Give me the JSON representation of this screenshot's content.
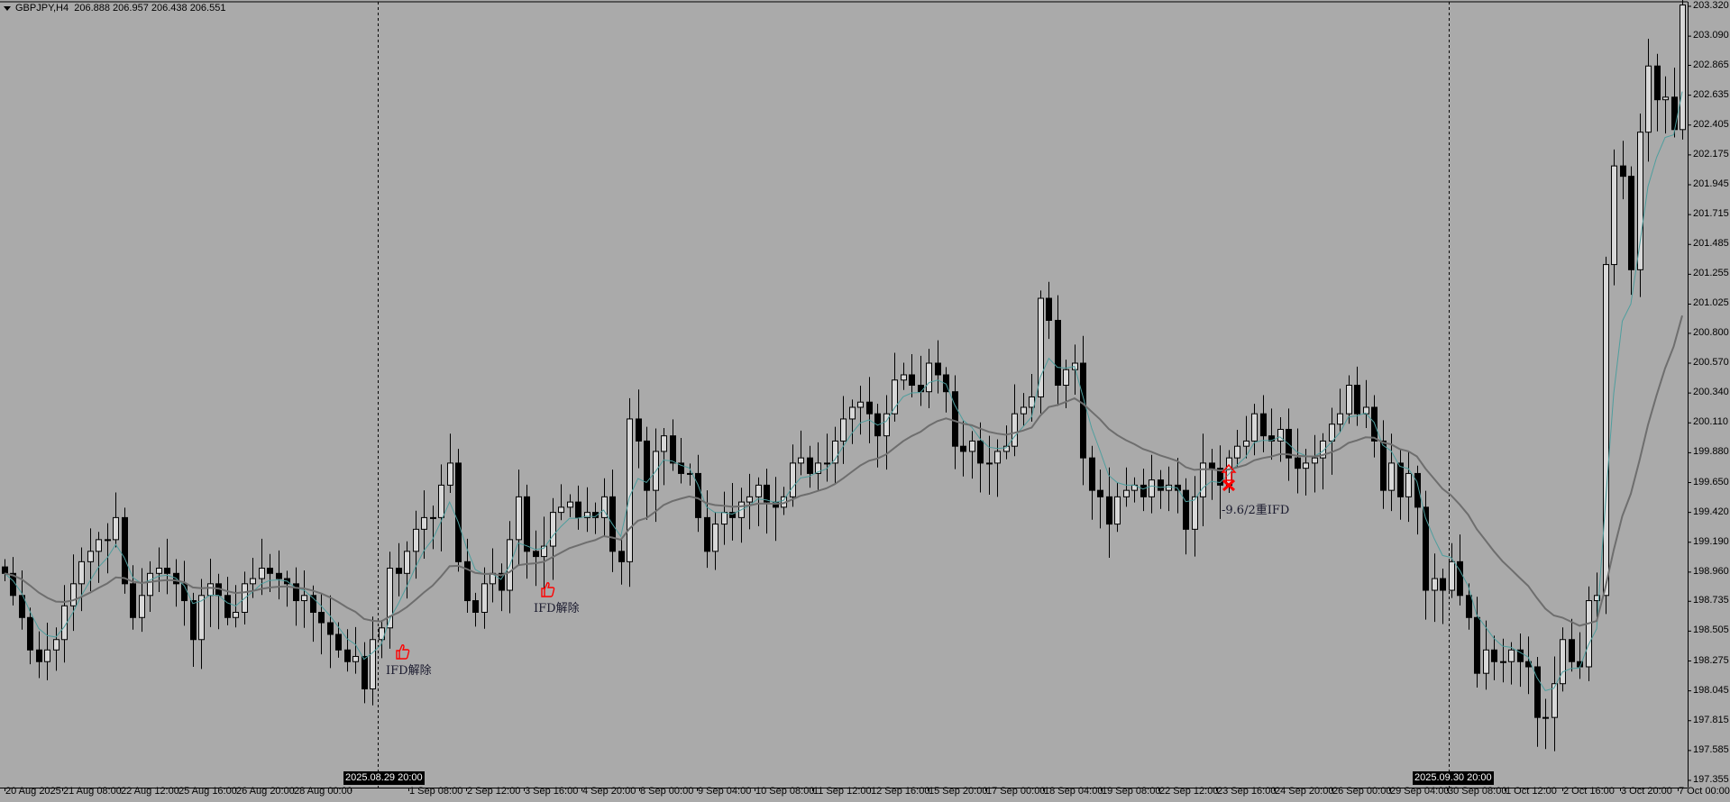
{
  "header": {
    "symbol": "GBPJPY,H4",
    "ohlc": "206.888 206.957 206.438 206.551"
  },
  "colors": {
    "background": "#aaaaaa",
    "bull_body": "#d8d8d8",
    "bear_body": "#000000",
    "ma_fast": "#4f9e9e",
    "ma_slow": "#6e6e6e",
    "annotation": "#ff0000"
  },
  "chart_data": {
    "type": "candlestick",
    "timeframe": "H4",
    "ylim": [
      197.355,
      203.32
    ],
    "y_ticks": [
      "203.320",
      "203.090",
      "202.865",
      "202.635",
      "202.405",
      "202.175",
      "201.945",
      "201.715",
      "201.485",
      "201.255",
      "201.025",
      "200.800",
      "200.570",
      "200.340",
      "200.110",
      "199.880",
      "199.650",
      "199.420",
      "199.190",
      "198.960",
      "198.735",
      "198.505",
      "198.275",
      "198.045",
      "197.815",
      "197.585",
      "197.355"
    ],
    "x_ticks": [
      "20 Aug 2025",
      "21 Aug 08:00",
      "22 Aug 12:00",
      "25 Aug 16:00",
      "26 Aug 20:00",
      "28 Aug 00:00",
      "",
      "1 Sep 08:00",
      "2 Sep 12:00",
      "3 Sep 16:00",
      "4 Sep 20:00",
      "8 Sep 00:00",
      "9 Sep 04:00",
      "10 Sep 08:00",
      "11 Sep 12:00",
      "12 Sep 16:00",
      "15 Sep 20:00",
      "17 Sep 00:00",
      "18 Sep 04:00",
      "19 Sep 08:00",
      "22 Sep 12:00",
      "23 Sep 16:00",
      "24 Sep 20:00",
      "26 Sep 00:00",
      "29 Sep 04:00",
      "30 Sep 08:00",
      "1 Oct 12:00",
      "2 Oct 16:00",
      "3 Oct 20:00",
      "7 Oct 00:00"
    ],
    "highlighted_times": [
      "2025.08.29 20:00",
      "2025.09.30 20:00"
    ],
    "close": [
      198.95,
      198.78,
      198.61,
      198.36,
      198.27,
      198.36,
      198.44,
      198.7,
      198.87,
      199.04,
      199.12,
      199.21,
      199.21,
      199.38,
      198.87,
      198.61,
      198.78,
      198.95,
      198.99,
      198.95,
      198.87,
      198.74,
      198.44,
      198.78,
      198.87,
      198.78,
      198.61,
      198.65,
      198.87,
      198.91,
      198.99,
      198.95,
      198.91,
      198.87,
      198.74,
      198.78,
      198.65,
      198.57,
      198.48,
      198.36,
      198.27,
      198.31,
      198.06,
      198.44,
      198.53,
      198.99,
      198.95,
      199.12,
      199.29,
      199.38,
      199.38,
      199.63,
      199.8,
      199.04,
      198.74,
      198.65,
      198.87,
      198.95,
      198.82,
      199.21,
      199.54,
      199.12,
      199.08,
      199.16,
      199.42,
      199.46,
      199.5,
      199.38,
      199.42,
      199.38,
      199.54,
      199.12,
      199.04,
      200.14,
      199.97,
      199.59,
      199.89,
      200.01,
      199.8,
      199.72,
      199.72,
      199.38,
      199.12,
      199.33,
      199.42,
      199.38,
      199.5,
      199.54,
      199.63,
      199.5,
      199.46,
      199.54,
      199.8,
      199.84,
      199.72,
      199.8,
      199.8,
      199.97,
      200.14,
      200.23,
      200.27,
      200.18,
      200.01,
      200.18,
      200.44,
      200.48,
      200.4,
      200.35,
      200.57,
      200.48,
      200.35,
      199.93,
      199.89,
      199.97,
      199.8,
      199.8,
      199.89,
      199.93,
      200.18,
      200.23,
      200.31,
      201.07,
      200.9,
      200.4,
      200.52,
      200.57,
      199.84,
      199.59,
      199.54,
      199.33,
      199.54,
      199.59,
      199.63,
      199.54,
      199.67,
      199.59,
      199.63,
      199.59,
      199.29,
      199.54,
      199.8,
      199.76,
      199.63,
      199.84,
      199.93,
      199.97,
      200.18,
      200.01,
      199.97,
      200.06,
      199.84,
      199.76,
      199.8,
      199.84,
      199.97,
      200.1,
      200.18,
      200.4,
      200.18,
      200.23,
      199.97,
      199.59,
      199.8,
      199.54,
      199.72,
      199.46,
      198.82,
      198.91,
      198.82,
      199.04,
      198.78,
      198.61,
      198.18,
      198.36,
      198.27,
      198.27,
      198.36,
      198.27,
      198.23,
      197.84,
      197.84,
      198.1,
      198.44,
      198.27,
      198.23,
      198.74,
      198.78,
      201.33,
      202.09,
      202.01,
      201.29,
      202.35,
      202.86,
      202.6,
      202.62,
      202.37,
      203.33
    ],
    "moving_averages": [
      {
        "period": 5,
        "color": "#4f9e9e"
      },
      {
        "period": 21,
        "color": "#6e6e6e"
      }
    ],
    "vertical_lines": [
      "2025.08.29 20:00",
      "2025.09.30 20:00"
    ]
  },
  "annotations": [
    {
      "icon": "thumbs-up-icon",
      "text": "IFD解除"
    },
    {
      "icon": "thumbs-up-icon",
      "text": "IFD解除"
    },
    {
      "icon": "arrow-up-cross-icon",
      "text": "-9.6/2重IFD"
    }
  ]
}
